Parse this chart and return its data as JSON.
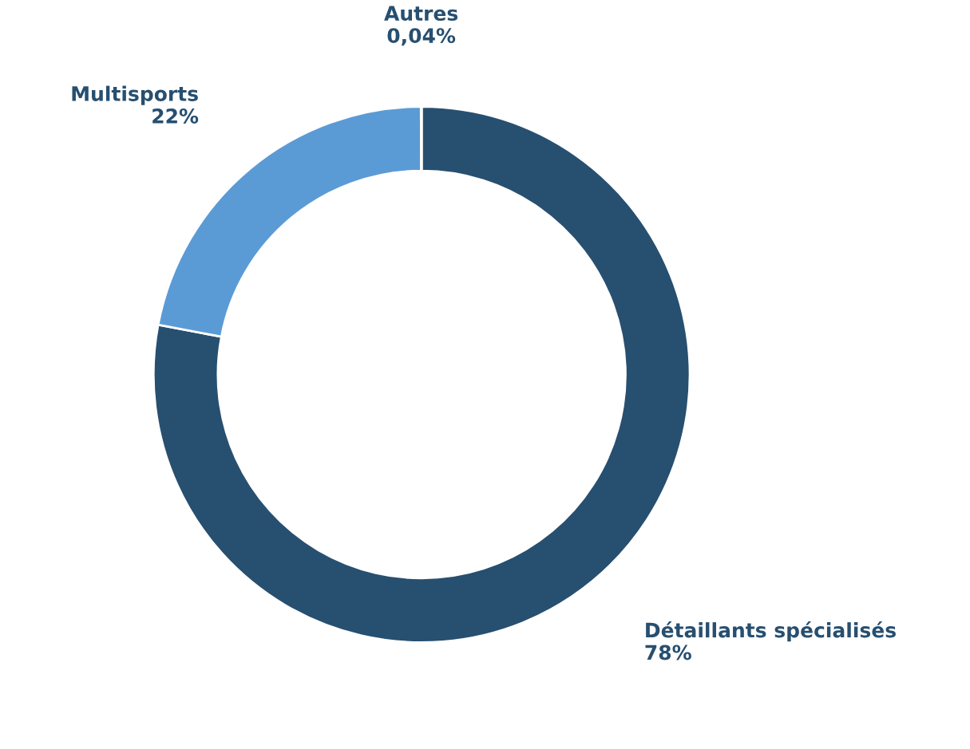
{
  "chart_data": {
    "type": "donut",
    "categories": [
      "Détaillants spécialisés",
      "Multisports",
      "Autres"
    ],
    "values": [
      78,
      22,
      0.04
    ],
    "value_labels": [
      "78%",
      "22%",
      "0,04%"
    ],
    "colors": [
      "#274f70",
      "#5b9bd5",
      "#274f70"
    ]
  }
}
